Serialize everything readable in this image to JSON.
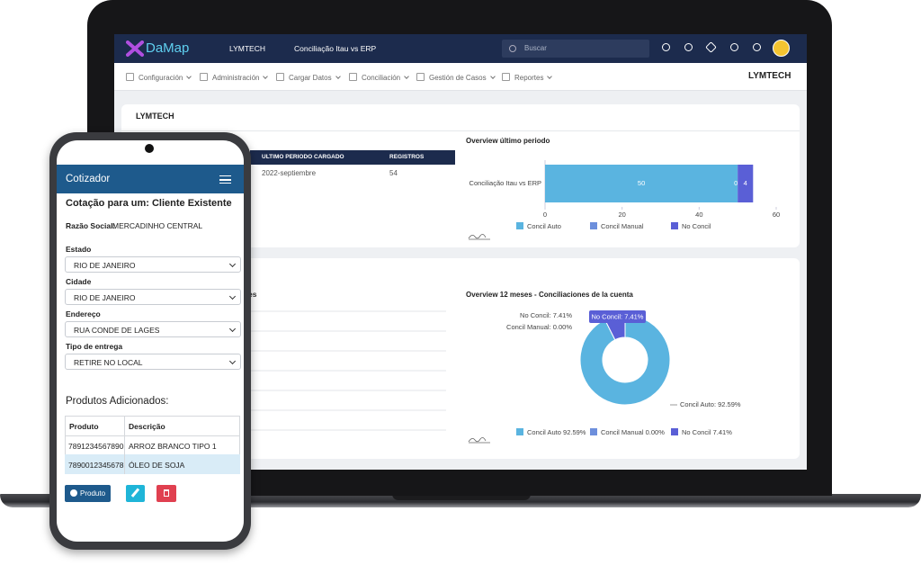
{
  "app": {
    "logo": "DaMap",
    "company": "LYMTECH",
    "context": "Conciliação Itau vs ERP",
    "search": "Buscar"
  },
  "menu": {
    "items": [
      "Configuración",
      "Administración",
      "Cargar Datos",
      "Conciliación",
      "Gestión de Casos",
      "Reportes"
    ],
    "company": "LYMTECH"
  },
  "panel1": {
    "title": "LYMTECH",
    "table": {
      "headers": [
        "ULTIMO PERIODO CARGADO",
        "REGISTROS"
      ],
      "rows": [
        [
          "2022-septiembre",
          54
        ]
      ]
    }
  },
  "panel2": {
    "label_fragment": "es"
  },
  "chart_bar": {
    "type": "bar",
    "title": "Overview último periodo",
    "categories": [
      "Conciliação Itau vs ERP"
    ],
    "series": [
      {
        "name": "Concil Auto",
        "color": "#5ab4e0",
        "values": [
          50
        ]
      },
      {
        "name": "Concil Manual",
        "color": "#6d8fdc",
        "values": [
          0
        ]
      },
      {
        "name": "No Concil",
        "color": "#5a5fd6",
        "values": [
          4
        ]
      }
    ],
    "xlim": [
      0,
      60
    ],
    "xticks": [
      0,
      20,
      40,
      60
    ]
  },
  "chart_donut": {
    "type": "donut",
    "title": "Overview 12 meses - Conciliaciones de la cuenta",
    "categories": [
      "Concil Auto",
      "Concil Manual",
      "No Concil"
    ],
    "values": [
      92.59,
      0,
      7.41
    ],
    "colors": [
      "#5ab4e0",
      "#6d8fdc",
      "#5a5fd6"
    ],
    "data_labels": [
      "Concil Auto: 92.59%",
      "Concil Manual: 0.00%",
      "No Concil: 7.41%"
    ],
    "legend_labels": [
      "Concil Auto 92.59%",
      "Concil Manual 0.00%",
      "No Concil 7.41%"
    ],
    "tooltip": "No Concil: 7.41%"
  },
  "phone": {
    "header": "Cotizador",
    "title": "Cotação para um: Cliente Existente",
    "company_label": "Razão Social:",
    "company_value": "MERCADINHO CENTRAL",
    "fields": [
      {
        "label": "Estado",
        "value": "RIO DE JANEIRO"
      },
      {
        "label": "Cidade",
        "value": "RIO DE JANEIRO"
      },
      {
        "label": "Endereço",
        "value": "RUA CONDE DE LAGES"
      },
      {
        "label": "Tipo de entrega",
        "value": "RETIRE NO LOCAL"
      }
    ],
    "products_title": "Produtos Adicionados:",
    "table": {
      "headers": [
        "Produto",
        "Descrição"
      ],
      "rows": [
        [
          "7891234567890",
          "ARROZ BRANCO TIPO 1"
        ],
        [
          "7890012345678",
          "ÓLEO DE SOJA"
        ]
      ]
    },
    "add_button": "Produto"
  }
}
